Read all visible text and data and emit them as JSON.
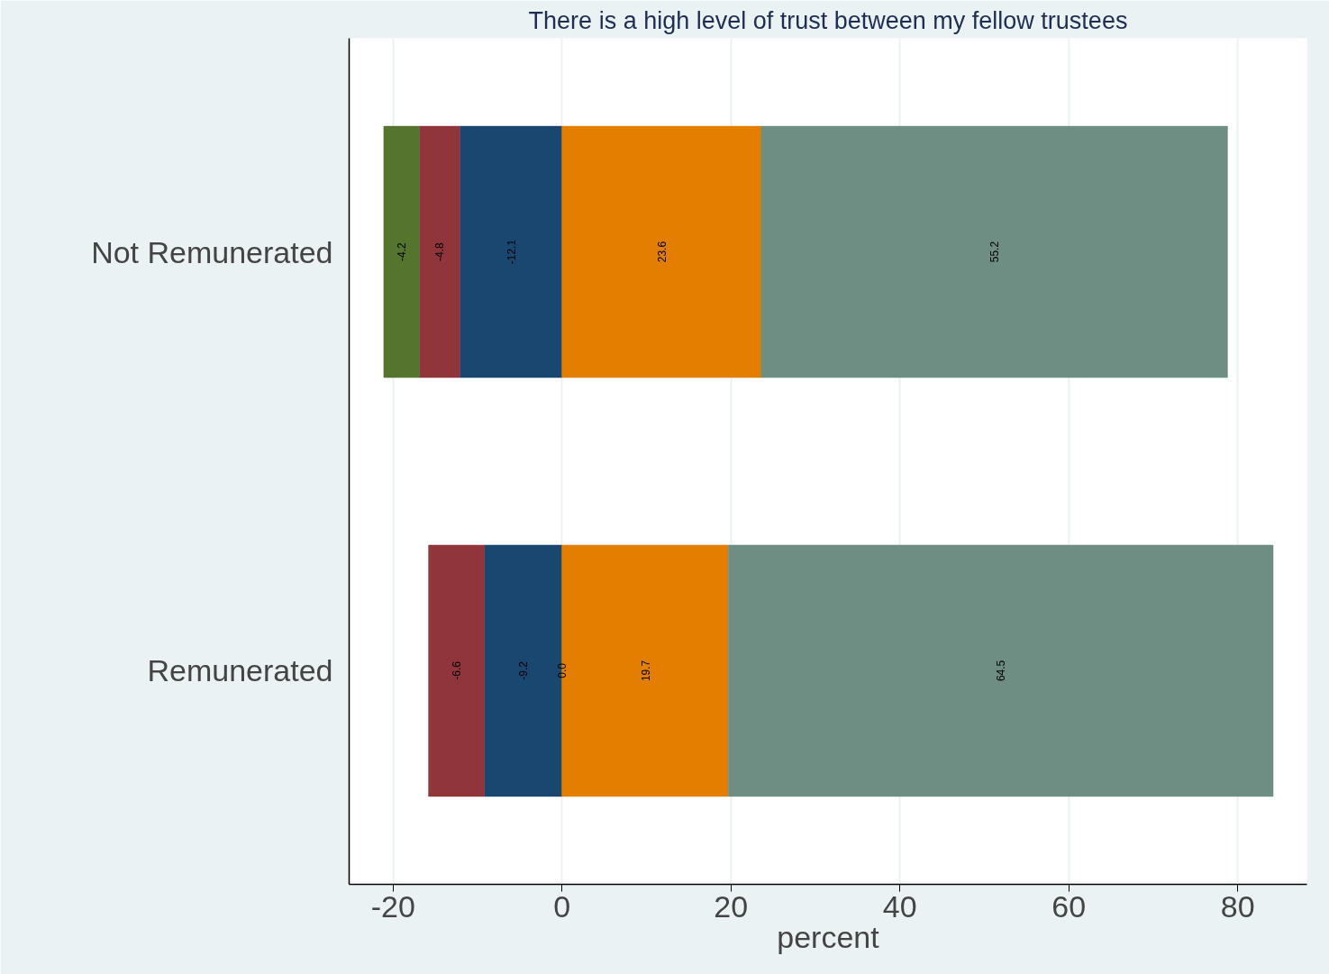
{
  "chart_data": {
    "type": "bar",
    "orientation": "horizontal",
    "stacked": true,
    "title": "There is a high level of trust between my fellow trustees",
    "xlabel": "percent",
    "categories": [
      "Not Remunerated",
      "Remunerated"
    ],
    "series": [
      {
        "color": "#1a476f",
        "values": [
          -12.1,
          -9.2
        ],
        "value_labels": [
          "-12.1",
          "-9.2"
        ]
      },
      {
        "color": "#90353b",
        "values": [
          -4.8,
          -6.6
        ],
        "value_labels": [
          "-4.8",
          "-6.6"
        ]
      },
      {
        "color": "#55752f",
        "values": [
          -4.2,
          0.0
        ],
        "value_labels": [
          "-4.2",
          "0.0"
        ]
      },
      {
        "color": "#e37e00",
        "values": [
          23.6,
          19.7
        ],
        "value_labels": [
          "23.6",
          "19.7"
        ]
      },
      {
        "color": "#6e8e84",
        "values": [
          55.2,
          64.5
        ],
        "value_labels": [
          "55.2",
          "64.5"
        ]
      }
    ],
    "xlim": [
      -25.2,
      88.2
    ],
    "xticks": [
      -20,
      0,
      20,
      40,
      60,
      80
    ],
    "grid": "x"
  }
}
